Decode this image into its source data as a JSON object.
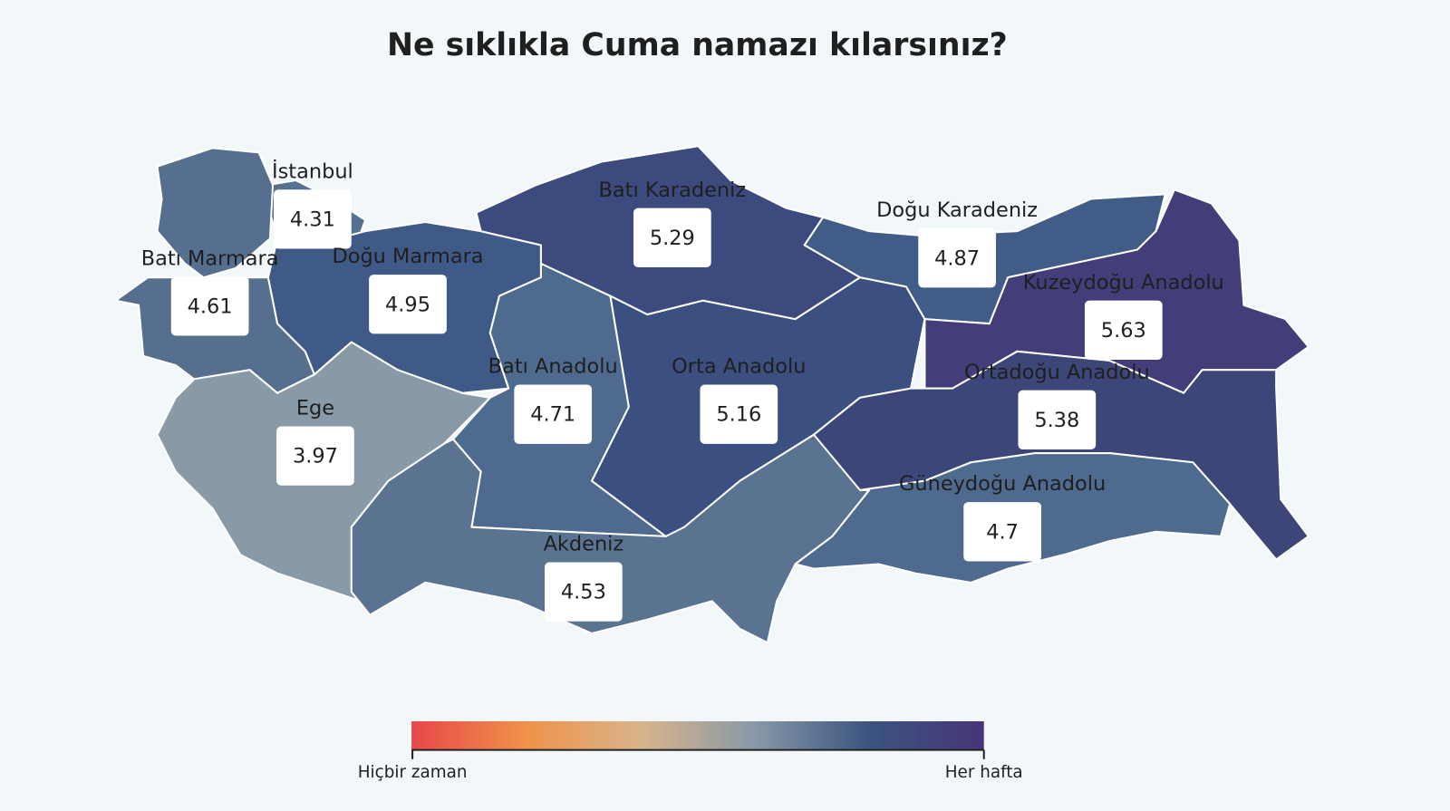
{
  "chart_data": {
    "type": "choropleth",
    "title": "Ne sıklıkla Cuma namazı kılarsınız?",
    "regions": [
      {
        "name": "İstanbul",
        "value": 4.31,
        "color": "#56708f"
      },
      {
        "name": "Batı Marmara",
        "value": 4.61,
        "color": "#566f8f"
      },
      {
        "name": "Doğu Marmara",
        "value": 4.95,
        "color": "#3f5a86"
      },
      {
        "name": "Ege",
        "value": 3.97,
        "color": "#8899a8"
      },
      {
        "name": "Batı Anadolu",
        "value": 4.71,
        "color": "#4e6a8e"
      },
      {
        "name": "Akdeniz",
        "value": 4.53,
        "color": "#5a7391"
      },
      {
        "name": "Orta Anadolu",
        "value": 5.16,
        "color": "#3b4f80"
      },
      {
        "name": "Batı Karadeniz",
        "value": 5.29,
        "color": "#3c4a7e"
      },
      {
        "name": "Doğu Karadeniz",
        "value": 4.87,
        "color": "#415d87"
      },
      {
        "name": "Kuzeydoğu Anadolu",
        "value": 5.63,
        "color": "#433d7a"
      },
      {
        "name": "Ortadoğu Anadolu",
        "value": 5.38,
        "color": "#3c4679"
      },
      {
        "name": "Güneydoğu Anadolu",
        "value": 4.7,
        "color": "#4e6a8e"
      }
    ],
    "legend": {
      "min_label": "Hiçbir zaman",
      "max_label": "Her hafta",
      "colors": [
        "#e8474a",
        "#f0924a",
        "#d9b48a",
        "#8899a8",
        "#3b5480",
        "#473579"
      ]
    }
  }
}
